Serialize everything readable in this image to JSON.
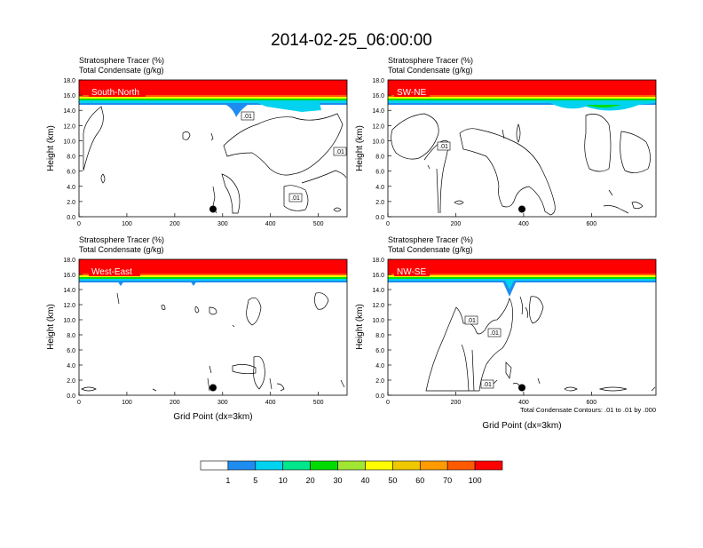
{
  "title": "2014-02-25_06:00:00",
  "colors": {
    "scale": [
      "#ffffff",
      "#1e8cf0",
      "#00d2f0",
      "#00e68c",
      "#00dc00",
      "#a0e632",
      "#ffff00",
      "#f0c800",
      "#ff9b00",
      "#ff5a00",
      "#ff0000"
    ],
    "contour_line": "#000000"
  },
  "panels": [
    {
      "id": "south-north",
      "subtitle_line1": "Stratosphere Tracer   (%)",
      "subtitle_line2": "Total Condensate   (g/kg)",
      "label": "South-North",
      "ylabel": "Height (km)",
      "xlabel": "",
      "contour_labels": [
        ".01",
        ".01",
        ".01"
      ]
    },
    {
      "id": "sw-ne",
      "subtitle_line1": "Stratosphere Tracer   (%)",
      "subtitle_line2": "Total Condensate   (g/kg)",
      "label": "SW-NE",
      "ylabel": "Height (km)",
      "xlabel": "",
      "contour_labels": [
        ".01"
      ]
    },
    {
      "id": "west-east",
      "subtitle_line1": "Stratosphere Tracer   (%)",
      "subtitle_line2": "Total Condensate   (g/kg)",
      "label": "West-East",
      "ylabel": "Height (km)",
      "xlabel": "Grid Point (dx=3km)",
      "contour_labels": []
    },
    {
      "id": "nw-se",
      "subtitle_line1": "Stratosphere Tracer   (%)",
      "subtitle_line2": "Total Condensate   (g/kg)",
      "label": "NW-SE",
      "ylabel": "Height (km)",
      "xlabel": "Grid Point (dx=3km)",
      "footnote": "Total Condensate Contours: .01 to .01 by .000",
      "contour_labels": [
        ".01",
        ".01",
        ".01"
      ]
    }
  ],
  "colorbar": {
    "labels": [
      "1",
      "5",
      "10",
      "20",
      "30",
      "40",
      "50",
      "60",
      "70",
      "100"
    ]
  },
  "chart_data": [
    {
      "type": "heatmap",
      "title": "South-North",
      "ylabel": "Height (km)",
      "xlim": [
        0,
        560
      ],
      "ylim": [
        0,
        18
      ],
      "xticks": [
        0,
        100,
        200,
        300,
        400,
        500
      ],
      "yticks": [
        "0.0",
        "2.0",
        "4.0",
        "6.0",
        "8.0",
        "10.0",
        "12.0",
        "14.0",
        "16.0",
        "18.0"
      ],
      "tracer_bands": [
        {
          "level": 100,
          "y0": 16.0,
          "y1": 18.0
        },
        {
          "level": 70,
          "y0": 15.9,
          "y1": 16.0
        },
        {
          "level": 40,
          "y0": 15.7,
          "y1": 15.9
        },
        {
          "level": 20,
          "y0": 15.5,
          "y1": 15.7
        },
        {
          "level": 10,
          "y0": 15.3,
          "y1": 15.5
        },
        {
          "level": 5,
          "y0": 15.1,
          "y1": 15.3
        }
      ],
      "marker": {
        "x": 280,
        "y": 1.0
      }
    },
    {
      "type": "heatmap",
      "title": "SW-NE",
      "ylabel": "Height (km)",
      "xlim": [
        0,
        790
      ],
      "ylim": [
        0,
        18
      ],
      "xticks": [
        0,
        200,
        400,
        600
      ],
      "yticks": [
        "0.0",
        "2.0",
        "4.0",
        "6.0",
        "8.0",
        "10.0",
        "12.0",
        "14.0",
        "16.0",
        "18.0"
      ],
      "tracer_bands": [
        {
          "level": 100,
          "y0": 16.0,
          "y1": 18.0
        },
        {
          "level": 70,
          "y0": 15.9,
          "y1": 16.0
        },
        {
          "level": 40,
          "y0": 15.7,
          "y1": 15.9
        },
        {
          "level": 20,
          "y0": 15.5,
          "y1": 15.7
        },
        {
          "level": 10,
          "y0": 15.3,
          "y1": 15.5
        },
        {
          "level": 5,
          "y0": 15.1,
          "y1": 15.3
        }
      ],
      "marker": {
        "x": 395,
        "y": 1.0
      }
    },
    {
      "type": "heatmap",
      "title": "West-East",
      "xlabel": "Grid Point (dx=3km)",
      "ylabel": "Height (km)",
      "xlim": [
        0,
        560
      ],
      "ylim": [
        0,
        18
      ],
      "xticks": [
        0,
        100,
        200,
        300,
        400,
        500
      ],
      "yticks": [
        "0.0",
        "2.0",
        "4.0",
        "6.0",
        "8.0",
        "10.0",
        "12.0",
        "14.0",
        "16.0",
        "18.0"
      ],
      "tracer_bands": [
        {
          "level": 100,
          "y0": 16.2,
          "y1": 18.0
        },
        {
          "level": 70,
          "y0": 16.0,
          "y1": 16.2
        },
        {
          "level": 40,
          "y0": 15.8,
          "y1": 16.0
        },
        {
          "level": 20,
          "y0": 15.6,
          "y1": 15.8
        },
        {
          "level": 10,
          "y0": 15.4,
          "y1": 15.6
        },
        {
          "level": 5,
          "y0": 15.2,
          "y1": 15.4
        }
      ],
      "marker": {
        "x": 280,
        "y": 1.0
      }
    },
    {
      "type": "heatmap",
      "title": "NW-SE",
      "xlabel": "Grid Point (dx=3km)",
      "ylabel": "Height (km)",
      "xlim": [
        0,
        790
      ],
      "ylim": [
        0,
        18
      ],
      "xticks": [
        0,
        200,
        400,
        600
      ],
      "yticks": [
        "0.0",
        "2.0",
        "4.0",
        "6.0",
        "8.0",
        "10.0",
        "12.0",
        "14.0",
        "16.0",
        "18.0"
      ],
      "tracer_bands": [
        {
          "level": 100,
          "y0": 16.2,
          "y1": 18.0
        },
        {
          "level": 70,
          "y0": 16.0,
          "y1": 16.2
        },
        {
          "level": 40,
          "y0": 15.8,
          "y1": 16.0
        },
        {
          "level": 20,
          "y0": 15.6,
          "y1": 15.8
        },
        {
          "level": 10,
          "y0": 15.4,
          "y1": 15.6
        },
        {
          "level": 5,
          "y0": 15.2,
          "y1": 15.4
        }
      ],
      "marker": {
        "x": 395,
        "y": 1.0
      }
    }
  ]
}
